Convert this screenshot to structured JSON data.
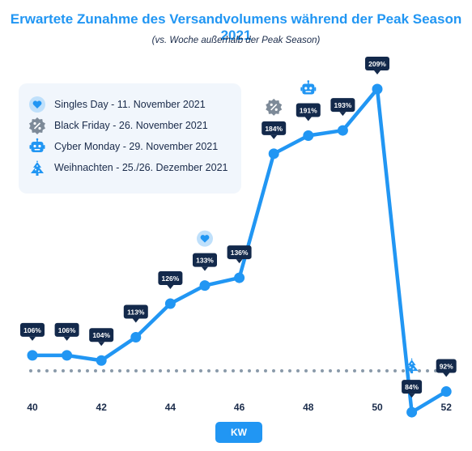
{
  "title": "Erwartete Zunahme des Versandvolumens während der Peak Season 2021",
  "subtitle": "(vs. Woche außerhalb der Peak Season)",
  "legend": {
    "items": [
      {
        "icon": "heart-icon",
        "label": "Singles Day - 11. November 2021"
      },
      {
        "icon": "badge-percent-icon",
        "label": "Black Friday - 26. November 2021"
      },
      {
        "icon": "robot-icon",
        "label": "Cyber Monday - 29. November 2021"
      },
      {
        "icon": "christmas-tree-icon",
        "label": "Weihnachten - 25./26. Dezember 2021"
      }
    ]
  },
  "colors": {
    "line": "#2196f3",
    "label_bg": "#13294b",
    "baseline": "#8a9aaa",
    "title": "#2196f3"
  },
  "chart_data": {
    "type": "line",
    "xlabel": "KW",
    "x_ticks": [
      "40",
      "42",
      "44",
      "46",
      "48",
      "50",
      "52"
    ],
    "baseline_value": 100,
    "points": [
      {
        "x": 40,
        "y": 106,
        "label": "106%"
      },
      {
        "x": 41,
        "y": 106,
        "label": "106%"
      },
      {
        "x": 42,
        "y": 104,
        "label": "104%"
      },
      {
        "x": 43,
        "y": 113,
        "label": "113%"
      },
      {
        "x": 44,
        "y": 126,
        "label": "126%"
      },
      {
        "x": 45,
        "y": 133,
        "label": "133%",
        "event": "heart-icon"
      },
      {
        "x": 46,
        "y": 136,
        "label": "136%"
      },
      {
        "x": 47,
        "y": 184,
        "label": "184%",
        "event": "badge-percent-icon"
      },
      {
        "x": 48,
        "y": 191,
        "label": "191%",
        "event": "robot-icon"
      },
      {
        "x": 49,
        "y": 193,
        "label": "193%"
      },
      {
        "x": 50,
        "y": 209,
        "label": "209%"
      },
      {
        "x": 51,
        "y": 84,
        "label": "84%",
        "event": "christmas-tree-icon"
      },
      {
        "x": 52,
        "y": 92,
        "label": "92%"
      }
    ]
  }
}
